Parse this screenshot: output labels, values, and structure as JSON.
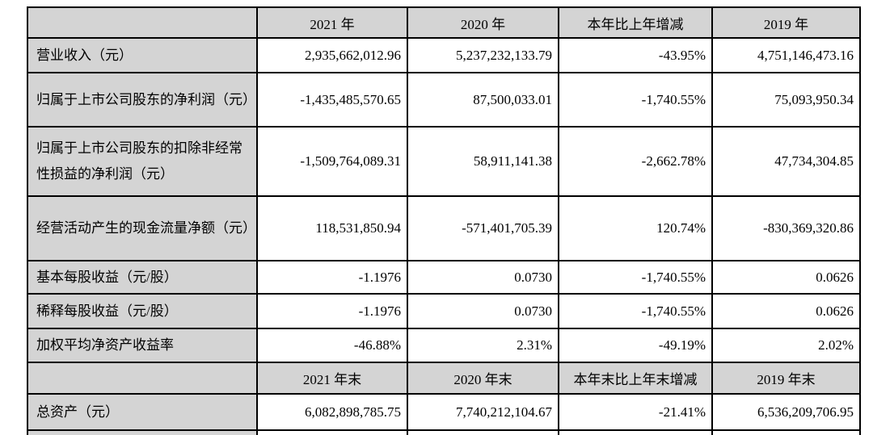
{
  "colors": {
    "header_bg": "#d4d4d4",
    "border": "#000000",
    "text": "#000000",
    "page_bg": "#ffffff"
  },
  "table": {
    "section1": {
      "corner": "",
      "col_headers": [
        "2021 年",
        "2020 年",
        "本年比上年增减",
        "2019 年"
      ],
      "rows": [
        {
          "label": "营业收入（元）",
          "values": [
            "2,935,662,012.96",
            "5,237,232,133.79",
            "-43.95%",
            "4,751,146,473.16"
          ]
        },
        {
          "label": "归属于上市公司股东的净利润（元）",
          "values": [
            "-1,435,485,570.65",
            "87,500,033.01",
            "-1,740.55%",
            "75,093,950.34"
          ]
        },
        {
          "label": "归属于上市公司股东的扣除非经常性损益的净利润（元）",
          "values": [
            "-1,509,764,089.31",
            "58,911,141.38",
            "-2,662.78%",
            "47,734,304.85"
          ]
        },
        {
          "label": "经营活动产生的现金流量净额（元）",
          "values": [
            "118,531,850.94",
            "-571,401,705.39",
            "120.74%",
            "-830,369,320.86"
          ]
        },
        {
          "label": "基本每股收益（元/股）",
          "values": [
            "-1.1976",
            "0.0730",
            "-1,740.55%",
            "0.0626"
          ]
        },
        {
          "label": "稀释每股收益（元/股）",
          "values": [
            "-1.1976",
            "0.0730",
            "-1,740.55%",
            "0.0626"
          ]
        },
        {
          "label": "加权平均净资产收益率",
          "values": [
            "-46.88%",
            "2.31%",
            "-49.19%",
            "2.02%"
          ]
        }
      ]
    },
    "section2": {
      "corner": "",
      "col_headers": [
        "2021 年末",
        "2020 年末",
        "本年末比上年末增减",
        "2019 年末"
      ],
      "rows": [
        {
          "label": "总资产（元）",
          "values": [
            "6,082,898,785.75",
            "7,740,212,104.67",
            "-21.41%",
            "6,536,209,706.95"
          ]
        }
      ]
    }
  }
}
